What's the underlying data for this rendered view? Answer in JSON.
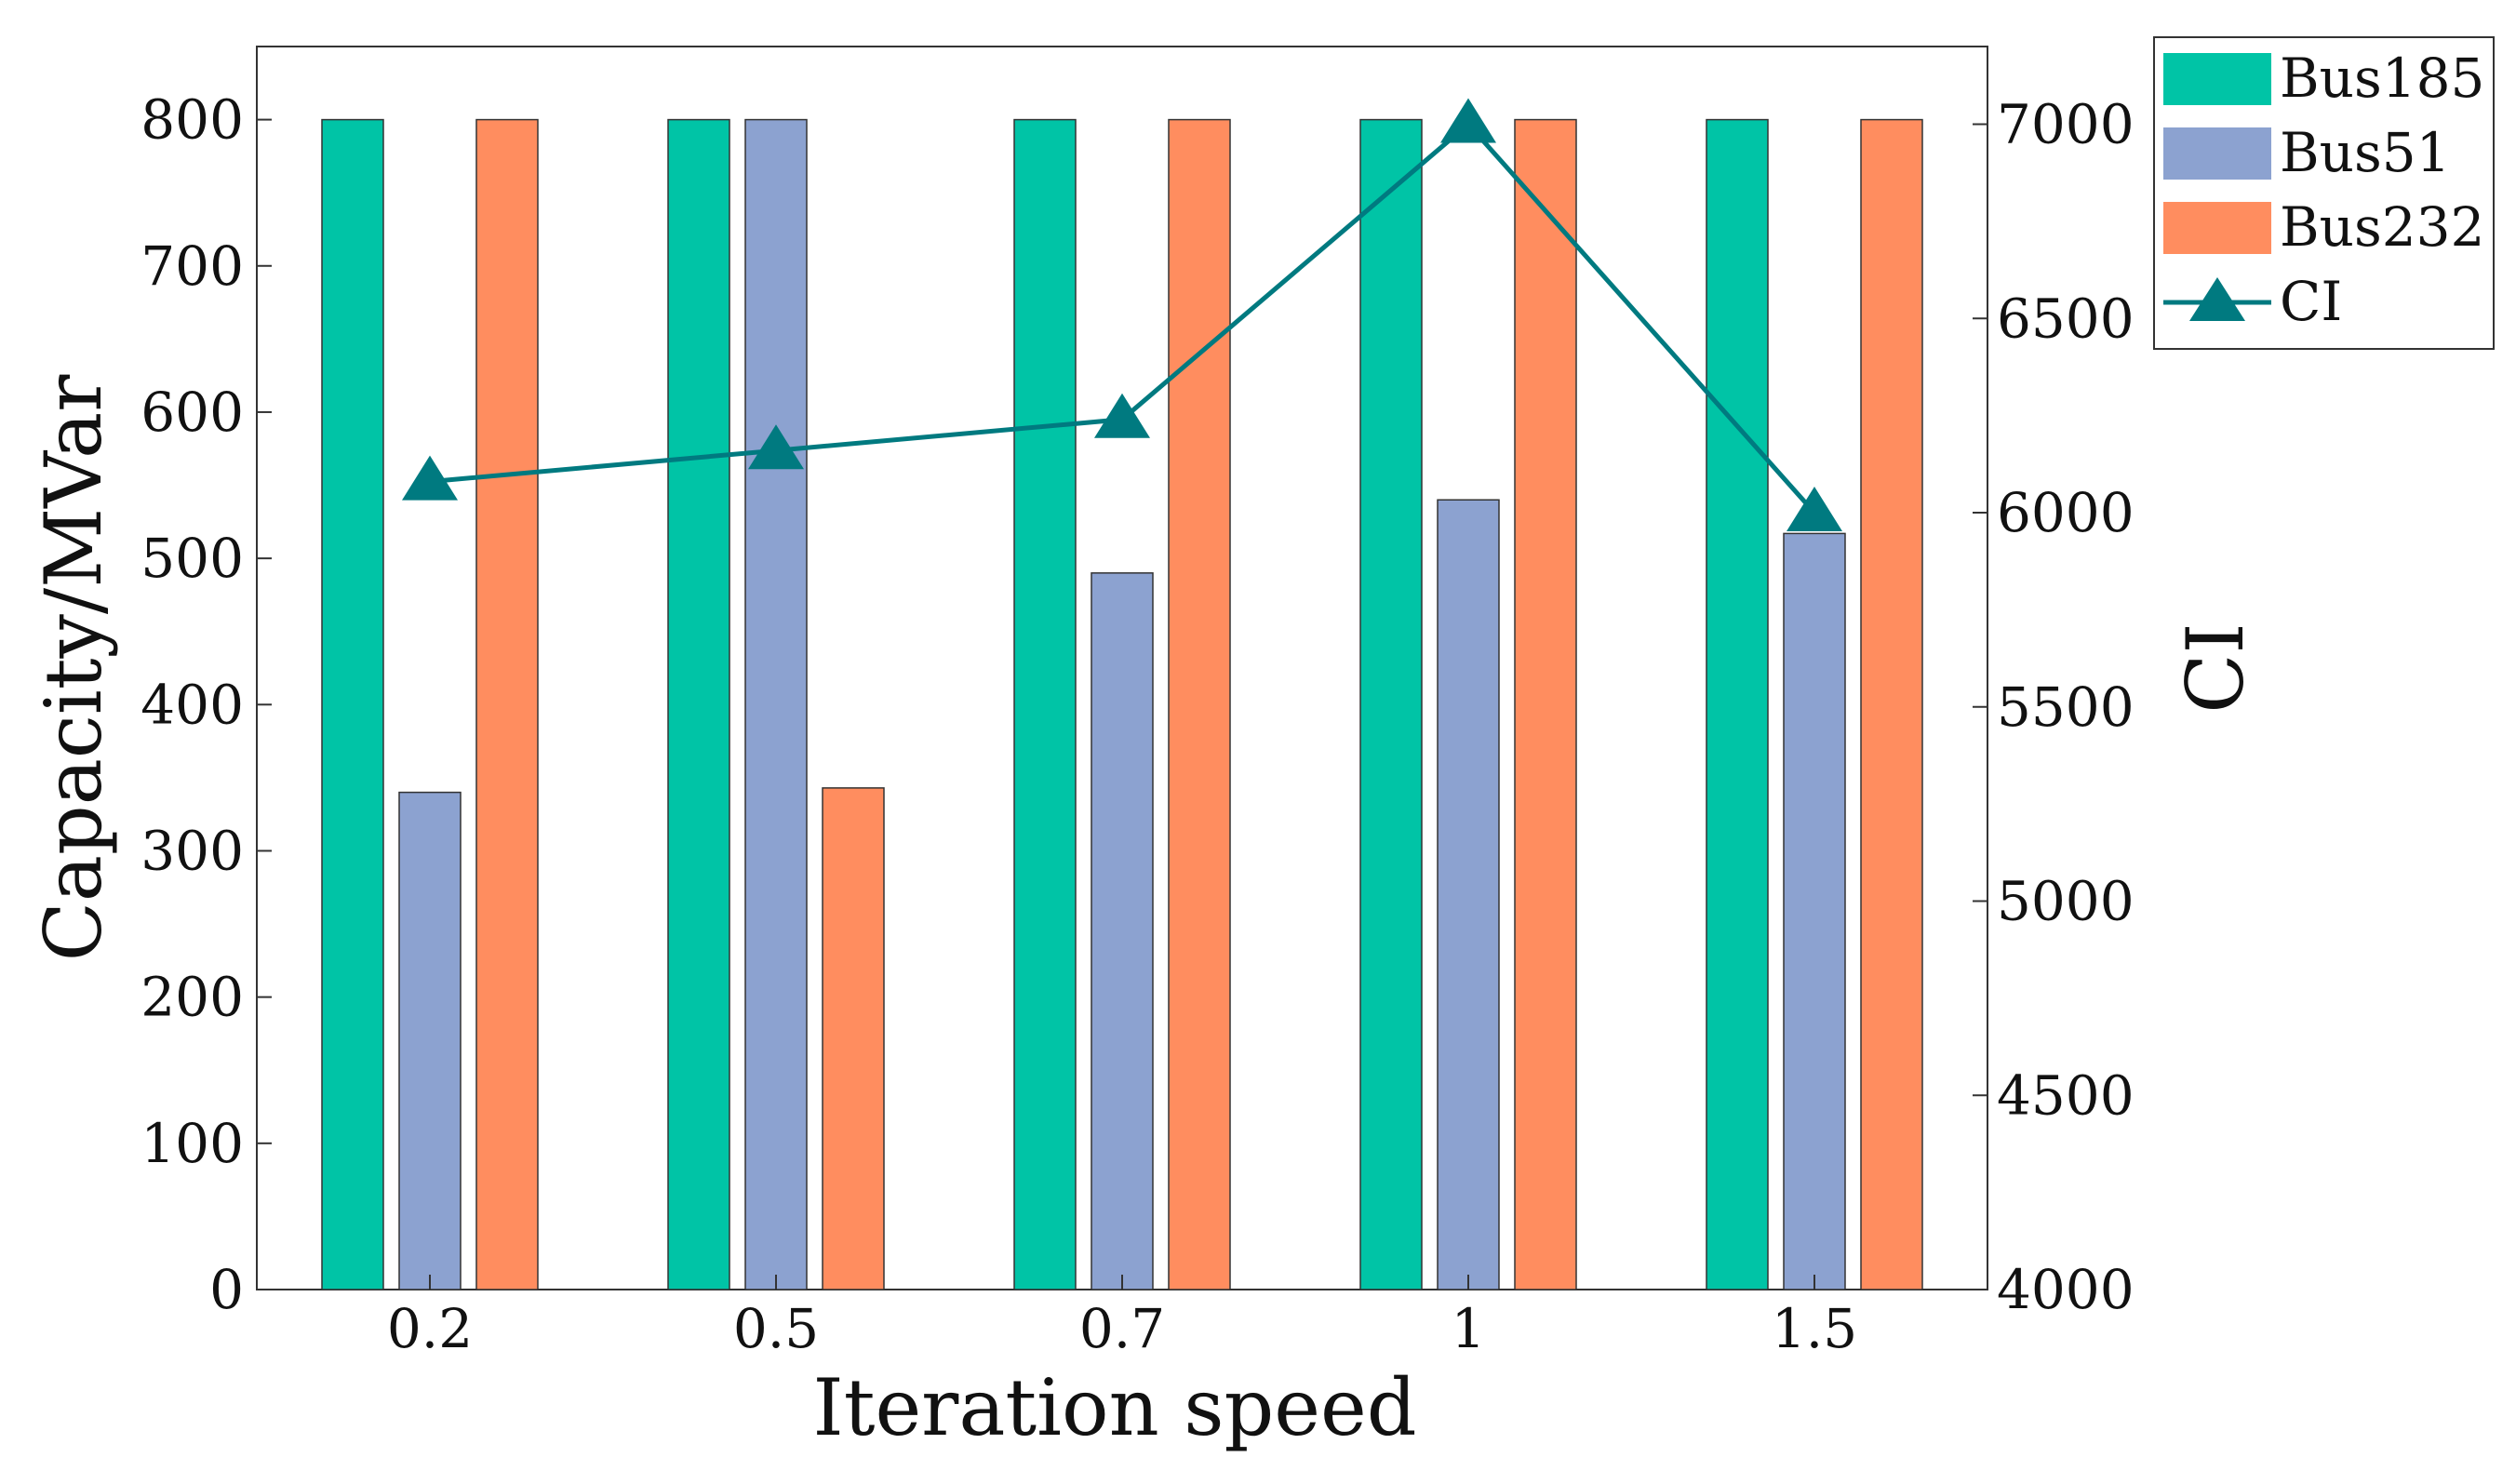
{
  "chart_data": {
    "type": "bar",
    "categories": [
      "0.2",
      "0.5",
      "0.7",
      "1",
      "1.5"
    ],
    "xlabel": "Iteration speed",
    "ylabel": "Capacity/MVar",
    "ylabel_right": "CI",
    "ylim": [
      0,
      850
    ],
    "yticks": [
      0,
      100,
      200,
      300,
      400,
      500,
      600,
      700,
      800
    ],
    "ylim_right": [
      4000,
      7200
    ],
    "yticks_right": [
      4000,
      4500,
      5000,
      5500,
      6000,
      6500,
      7000
    ],
    "grid": false,
    "legend": "top-right",
    "series": [
      {
        "name": "Bus185",
        "type": "bar",
        "color": "#00c4a6",
        "values": [
          800,
          800,
          800,
          800,
          800
        ]
      },
      {
        "name": "Bus51",
        "type": "bar",
        "color": "#8ca2d0",
        "values": [
          340,
          800,
          490,
          540,
          517
        ]
      },
      {
        "name": "Bus232",
        "type": "bar",
        "color": "#ff8d5f",
        "values": [
          800,
          343,
          800,
          800,
          800
        ]
      },
      {
        "name": "CI",
        "type": "line",
        "axis": "right",
        "marker": "triangle",
        "color": "#007a80",
        "values": [
          6080,
          6160,
          6240,
          7000,
          6000
        ]
      }
    ]
  }
}
